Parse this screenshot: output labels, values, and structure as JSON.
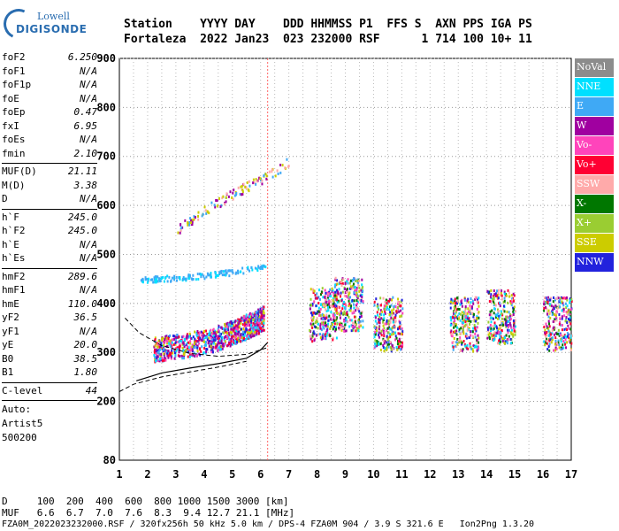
{
  "logo": {
    "line1": "Lowell",
    "line2": "DIGISONDE"
  },
  "header": {
    "row1": "Station    YYYY DAY    DDD HHMMSS P1  FFS S  AXN PPS IGA PS",
    "row2": "Fortaleza  2022 Jan23  023 232000 RSF      1 714 100 10+ 11"
  },
  "params_group1": [
    {
      "name": "foF2",
      "value": "6.250"
    },
    {
      "name": "foF1",
      "value": "N/A"
    },
    {
      "name": "foF1p",
      "value": "N/A"
    },
    {
      "name": "foE",
      "value": "N/A"
    },
    {
      "name": "foEp",
      "value": "0.47"
    },
    {
      "name": "fxI",
      "value": "6.95"
    },
    {
      "name": "foEs",
      "value": "N/A"
    },
    {
      "name": "fmin",
      "value": "2.10"
    }
  ],
  "params_group2": [
    {
      "name": "MUF(D)",
      "value": "21.11"
    },
    {
      "name": "M(D)",
      "value": "3.38"
    },
    {
      "name": "D",
      "value": "N/A"
    }
  ],
  "params_group3": [
    {
      "name": "h`F",
      "value": "245.0"
    },
    {
      "name": "h`F2",
      "value": "245.0"
    },
    {
      "name": "h`E",
      "value": "N/A"
    },
    {
      "name": "h`Es",
      "value": "N/A"
    }
  ],
  "params_group4": [
    {
      "name": "hmF2",
      "value": "289.6"
    },
    {
      "name": "hmF1",
      "value": "N/A"
    },
    {
      "name": "hmE",
      "value": "110.0"
    },
    {
      "name": "yF2",
      "value": "36.5"
    },
    {
      "name": "yF1",
      "value": "N/A"
    },
    {
      "name": "yE",
      "value": "20.0"
    },
    {
      "name": "B0",
      "value": "38.5"
    },
    {
      "name": "B1",
      "value": "1.80"
    }
  ],
  "params_group5": [
    {
      "name": "C-level",
      "value": "44"
    }
  ],
  "auto": {
    "line1": "Auto:",
    "line2": "Artist5",
    "line3": "500200"
  },
  "legend": [
    {
      "label": "NoVal",
      "color": "#8c8c8c"
    },
    {
      "label": "NNE",
      "color": "#00e0ff"
    },
    {
      "label": "E",
      "color": "#3fa9f5"
    },
    {
      "label": "W",
      "color": "#a000a0"
    },
    {
      "label": "Vo-",
      "color": "#ff44bb"
    },
    {
      "label": "Vo+",
      "color": "#ff0033"
    },
    {
      "label": "SSW",
      "color": "#ffaaaa"
    },
    {
      "label": "X-",
      "color": "#007700"
    },
    {
      "label": "X+",
      "color": "#9acd32"
    },
    {
      "label": "SSE",
      "color": "#cccc00"
    },
    {
      "label": "NNW",
      "color": "#2222dd"
    }
  ],
  "bottom": {
    "d_row": "D     100  200  400  600  800 1000 1500 3000 [km]",
    "muf_row": "MUF   6.6  6.7  7.0  7.6  8.3  9.4 12.7 21.1 [MHz]",
    "file_row": "FZA0M_2022023232000.RSF / 320fx256h 50 kHz 5.0 km / DPS-4 FZA0M 904 / 3.9 S 321.6 E   Ion2Png 1.3.20"
  },
  "chart_data": {
    "type": "scatter",
    "x_ticks": [
      1,
      2,
      3,
      4,
      5,
      6,
      7,
      8,
      9,
      10,
      11,
      12,
      13,
      14,
      15,
      16,
      17
    ],
    "y_ticks": [
      200,
      300,
      400,
      500,
      600,
      700,
      800,
      900
    ],
    "xlim": [
      1,
      17
    ],
    "ylim": [
      80,
      900
    ],
    "grid": true,
    "foF2_marker": 6.25,
    "f_trace": [
      [
        2.2,
        308
      ],
      [
        2.8,
        312
      ],
      [
        3.5,
        318
      ],
      [
        4.2,
        326
      ],
      [
        4.8,
        338
      ],
      [
        5.3,
        350
      ],
      [
        5.8,
        362
      ],
      [
        6.1,
        372
      ]
    ],
    "oblique_trace": [
      [
        1.7,
        450
      ],
      [
        2.5,
        452
      ],
      [
        3.5,
        456
      ],
      [
        4.5,
        462
      ],
      [
        5.5,
        470
      ],
      [
        6.2,
        480
      ]
    ],
    "high_trace": [
      [
        3,
        550
      ],
      [
        4,
        590
      ],
      [
        5,
        625
      ],
      [
        6,
        655
      ],
      [
        7,
        690
      ]
    ],
    "clusters": [
      {
        "x": 8.2,
        "y": 380
      },
      {
        "x": 9.1,
        "y": 400
      },
      {
        "x": 10.5,
        "y": 360
      },
      {
        "x": 13.2,
        "y": 360
      },
      {
        "x": 14.5,
        "y": 375
      },
      {
        "x": 16.5,
        "y": 360
      }
    ],
    "profile": [
      [
        1.6,
        242
      ],
      [
        2.5,
        258
      ],
      [
        3.5,
        268
      ],
      [
        4.5,
        277
      ],
      [
        5.5,
        288
      ],
      [
        6.0,
        305
      ],
      [
        6.25,
        320
      ]
    ],
    "model_upper": [
      [
        1.2,
        370
      ],
      [
        1.7,
        340
      ],
      [
        2.5,
        314
      ],
      [
        3.5,
        298
      ],
      [
        4.5,
        292
      ],
      [
        5.5,
        296
      ],
      [
        6.25,
        310
      ]
    ],
    "model_lower": [
      [
        1.0,
        220
      ],
      [
        1.5,
        235
      ],
      [
        2.5,
        250
      ],
      [
        3.5,
        260
      ],
      [
        4.5,
        270
      ],
      [
        5.5,
        282
      ]
    ]
  }
}
